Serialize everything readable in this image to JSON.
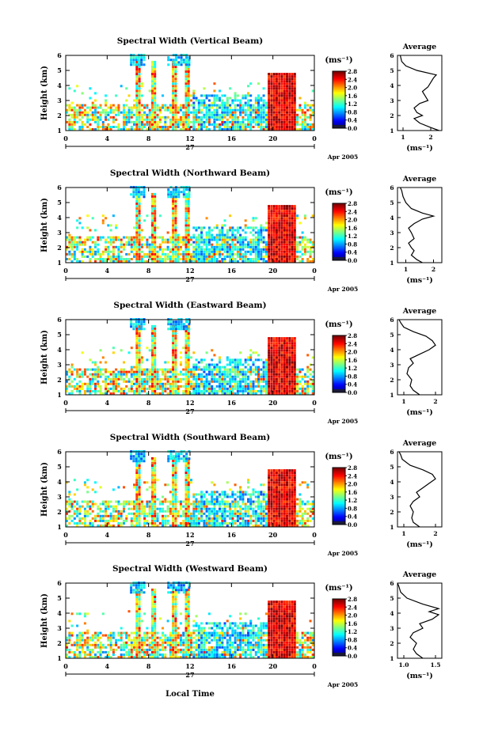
{
  "figure": {
    "date_label": "Apr 2005",
    "day_label": "27",
    "xlabel": "Local Time",
    "colorbar_unit": "(ms⁻¹)",
    "average_title": "Average",
    "average_xlabel": "(ms⁻¹)"
  },
  "chart_data": [
    {
      "type": "heatmap",
      "title": "Spectral Width (Vertical Beam)",
      "ylabel": "Height (km)",
      "x_ticks": [
        "0",
        "4",
        "8",
        "12",
        "16",
        "20",
        "0"
      ],
      "y_ticks": [
        "1",
        "2",
        "3",
        "4",
        "5",
        "6"
      ],
      "xlim": [
        0,
        24
      ],
      "ylim": [
        1,
        6
      ],
      "colorbar": {
        "ticks": [
          "0.0",
          "0.4",
          "0.8",
          "1.2",
          "1.6",
          "2.0",
          "2.4",
          "2.8"
        ],
        "range": [
          0.0,
          2.8
        ]
      },
      "average": {
        "x_ticks": [
          "1",
          "2"
        ],
        "xlim": [
          0.8,
          2.4
        ],
        "profile": [
          [
            1.0,
            2.3
          ],
          [
            1.2,
            2.0
          ],
          [
            1.5,
            1.6
          ],
          [
            1.8,
            1.4
          ],
          [
            2.0,
            1.7
          ],
          [
            2.2,
            1.5
          ],
          [
            2.5,
            1.4
          ],
          [
            2.8,
            1.6
          ],
          [
            3.0,
            1.9
          ],
          [
            3.3,
            1.8
          ],
          [
            3.6,
            1.7
          ],
          [
            3.9,
            1.9
          ],
          [
            4.2,
            2.0
          ],
          [
            4.5,
            2.1
          ],
          [
            4.7,
            2.2
          ],
          [
            5.0,
            1.5
          ],
          [
            5.3,
            1.1
          ],
          [
            5.6,
            0.95
          ],
          [
            6.0,
            0.9
          ]
        ]
      }
    },
    {
      "type": "heatmap",
      "title": "Spectral Width (Northward Beam)",
      "ylabel": "Height (km)",
      "x_ticks": [
        "0",
        "4",
        "8",
        "12",
        "16",
        "20",
        "0"
      ],
      "y_ticks": [
        "1",
        "2",
        "3",
        "4",
        "5",
        "6"
      ],
      "xlim": [
        0,
        24
      ],
      "ylim": [
        1,
        6
      ],
      "colorbar": {
        "ticks": [
          "0.0",
          "0.4",
          "0.8",
          "1.2",
          "1.6",
          "2.0",
          "2.4",
          "2.8"
        ],
        "range": [
          0.0,
          2.8
        ]
      },
      "average": {
        "x_ticks": [
          "1",
          "2"
        ],
        "xlim": [
          0.7,
          2.3
        ],
        "profile": [
          [
            1.0,
            1.6
          ],
          [
            1.2,
            1.4
          ],
          [
            1.5,
            1.2
          ],
          [
            1.8,
            1.3
          ],
          [
            2.0,
            1.2
          ],
          [
            2.3,
            1.1
          ],
          [
            2.6,
            1.3
          ],
          [
            3.0,
            1.2
          ],
          [
            3.3,
            1.1
          ],
          [
            3.6,
            1.3
          ],
          [
            3.9,
            1.6
          ],
          [
            4.1,
            2.0
          ],
          [
            4.3,
            1.6
          ],
          [
            4.6,
            1.2
          ],
          [
            5.0,
            1.0
          ],
          [
            5.4,
            0.9
          ],
          [
            5.8,
            0.85
          ],
          [
            6.0,
            0.8
          ]
        ]
      }
    },
    {
      "type": "heatmap",
      "title": "Spectral Width (Eastward Beam)",
      "ylabel": "Height (km)",
      "x_ticks": [
        "0",
        "4",
        "8",
        "12",
        "16",
        "20",
        "0"
      ],
      "y_ticks": [
        "1",
        "2",
        "3",
        "4",
        "5",
        "6"
      ],
      "xlim": [
        0,
        24
      ],
      "ylim": [
        1,
        6
      ],
      "colorbar": {
        "ticks": [
          "0.0",
          "0.4",
          "0.8",
          "1.2",
          "1.6",
          "2.0",
          "2.4",
          "2.8"
        ],
        "range": [
          0.0,
          2.8
        ]
      },
      "average": {
        "x_ticks": [
          "1",
          "2"
        ],
        "xlim": [
          0.8,
          2.2
        ],
        "profile": [
          [
            1.0,
            1.5
          ],
          [
            1.3,
            1.3
          ],
          [
            1.6,
            1.2
          ],
          [
            2.0,
            1.25
          ],
          [
            2.4,
            1.1
          ],
          [
            2.8,
            1.15
          ],
          [
            3.1,
            1.3
          ],
          [
            3.4,
            1.2
          ],
          [
            3.7,
            1.5
          ],
          [
            4.0,
            1.8
          ],
          [
            4.3,
            2.0
          ],
          [
            4.6,
            1.9
          ],
          [
            4.9,
            1.7
          ],
          [
            5.2,
            1.3
          ],
          [
            5.5,
            1.0
          ],
          [
            5.8,
            0.9
          ],
          [
            6.0,
            0.85
          ]
        ]
      }
    },
    {
      "type": "heatmap",
      "title": "Spectral Width (Southward Beam)",
      "ylabel": "Height (km)",
      "x_ticks": [
        "0",
        "4",
        "8",
        "12",
        "16",
        "20",
        "0"
      ],
      "y_ticks": [
        "1",
        "2",
        "3",
        "4",
        "5",
        "6"
      ],
      "xlim": [
        0,
        24
      ],
      "ylim": [
        1,
        6
      ],
      "colorbar": {
        "ticks": [
          "0.0",
          "0.4",
          "0.8",
          "1.2",
          "1.6",
          "2.0",
          "2.4",
          "2.8"
        ],
        "range": [
          0.0,
          2.8
        ]
      },
      "average": {
        "x_ticks": [
          "1",
          "2"
        ],
        "xlim": [
          0.8,
          2.2
        ],
        "profile": [
          [
            1.0,
            1.5
          ],
          [
            1.3,
            1.3
          ],
          [
            1.6,
            1.25
          ],
          [
            2.0,
            1.3
          ],
          [
            2.4,
            1.2
          ],
          [
            2.7,
            1.3
          ],
          [
            3.0,
            1.5
          ],
          [
            3.3,
            1.4
          ],
          [
            3.6,
            1.6
          ],
          [
            3.9,
            1.8
          ],
          [
            4.2,
            2.0
          ],
          [
            4.5,
            1.9
          ],
          [
            4.8,
            1.6
          ],
          [
            5.1,
            1.2
          ],
          [
            5.5,
            0.95
          ],
          [
            5.8,
            0.9
          ],
          [
            6.0,
            0.85
          ]
        ]
      }
    },
    {
      "type": "heatmap",
      "title": "Spectral Width (Westward Beam)",
      "ylabel": "Height (km)",
      "x_ticks": [
        "0",
        "4",
        "8",
        "12",
        "16",
        "20",
        "0"
      ],
      "y_ticks": [
        "1",
        "2",
        "3",
        "4",
        "5",
        "6"
      ],
      "xlim": [
        0,
        24
      ],
      "ylim": [
        1,
        6
      ],
      "colorbar": {
        "ticks": [
          "0.0",
          "0.4",
          "0.8",
          "1.2",
          "1.6",
          "2.0",
          "2.4",
          "2.8"
        ],
        "range": [
          0.0,
          2.8
        ]
      },
      "average": {
        "x_ticks": [
          "1.0",
          "1.5"
        ],
        "xlim": [
          0.9,
          1.6
        ],
        "profile": [
          [
            1.0,
            1.3
          ],
          [
            1.3,
            1.2
          ],
          [
            1.6,
            1.15
          ],
          [
            2.0,
            1.2
          ],
          [
            2.4,
            1.1
          ],
          [
            2.7,
            1.15
          ],
          [
            3.0,
            1.3
          ],
          [
            3.3,
            1.25
          ],
          [
            3.6,
            1.45
          ],
          [
            3.9,
            1.55
          ],
          [
            4.1,
            1.4
          ],
          [
            4.3,
            1.55
          ],
          [
            4.6,
            1.3
          ],
          [
            5.0,
            1.05
          ],
          [
            5.4,
            0.95
          ],
          [
            5.8,
            0.92
          ],
          [
            6.0,
            0.9
          ]
        ]
      }
    }
  ]
}
